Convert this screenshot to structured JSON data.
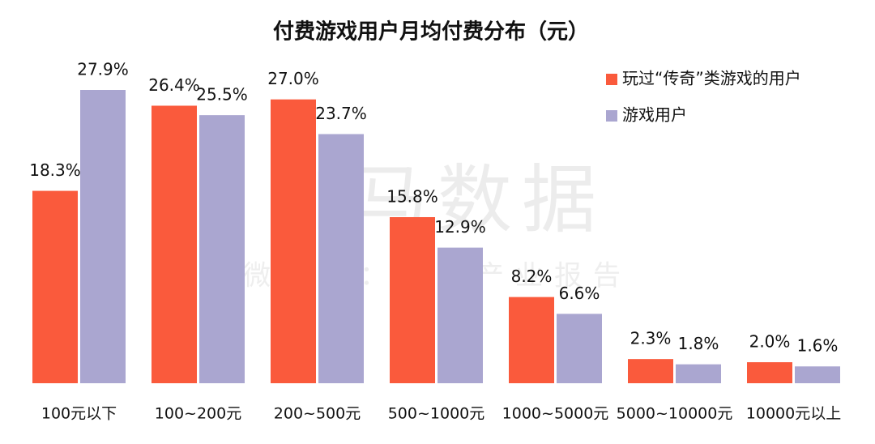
{
  "chart_data": {
    "type": "bar",
    "title": "付费游戏用户月均付费分布（元）",
    "watermark": "伽马数据",
    "watermark_subtitle": "微信号：游戏产业报告",
    "categories": [
      "100元以下",
      "100~200元",
      "200~500元",
      "500~1000元",
      "1000~5000元",
      "5000~10000元",
      "10000元以上"
    ],
    "series": [
      {
        "name": "玩过“传奇”类游戏的用户",
        "color": "#fa5a3c",
        "values": [
          18.3,
          26.4,
          27.0,
          15.8,
          8.2,
          2.3,
          2.0
        ],
        "value_labels": [
          "18.3%",
          "26.4%",
          "27.0%",
          "15.8%",
          "8.2%",
          "2.3%",
          "2.0%"
        ]
      },
      {
        "name": "游戏用户",
        "color": "#aaa6d0",
        "values": [
          27.9,
          25.5,
          23.7,
          12.9,
          6.6,
          1.8,
          1.6
        ],
        "value_labels": [
          "27.9%",
          "25.5%",
          "23.7%",
          "12.9%",
          "6.6%",
          "1.8%",
          "1.6%"
        ]
      }
    ],
    "legend": "top-right"
  }
}
